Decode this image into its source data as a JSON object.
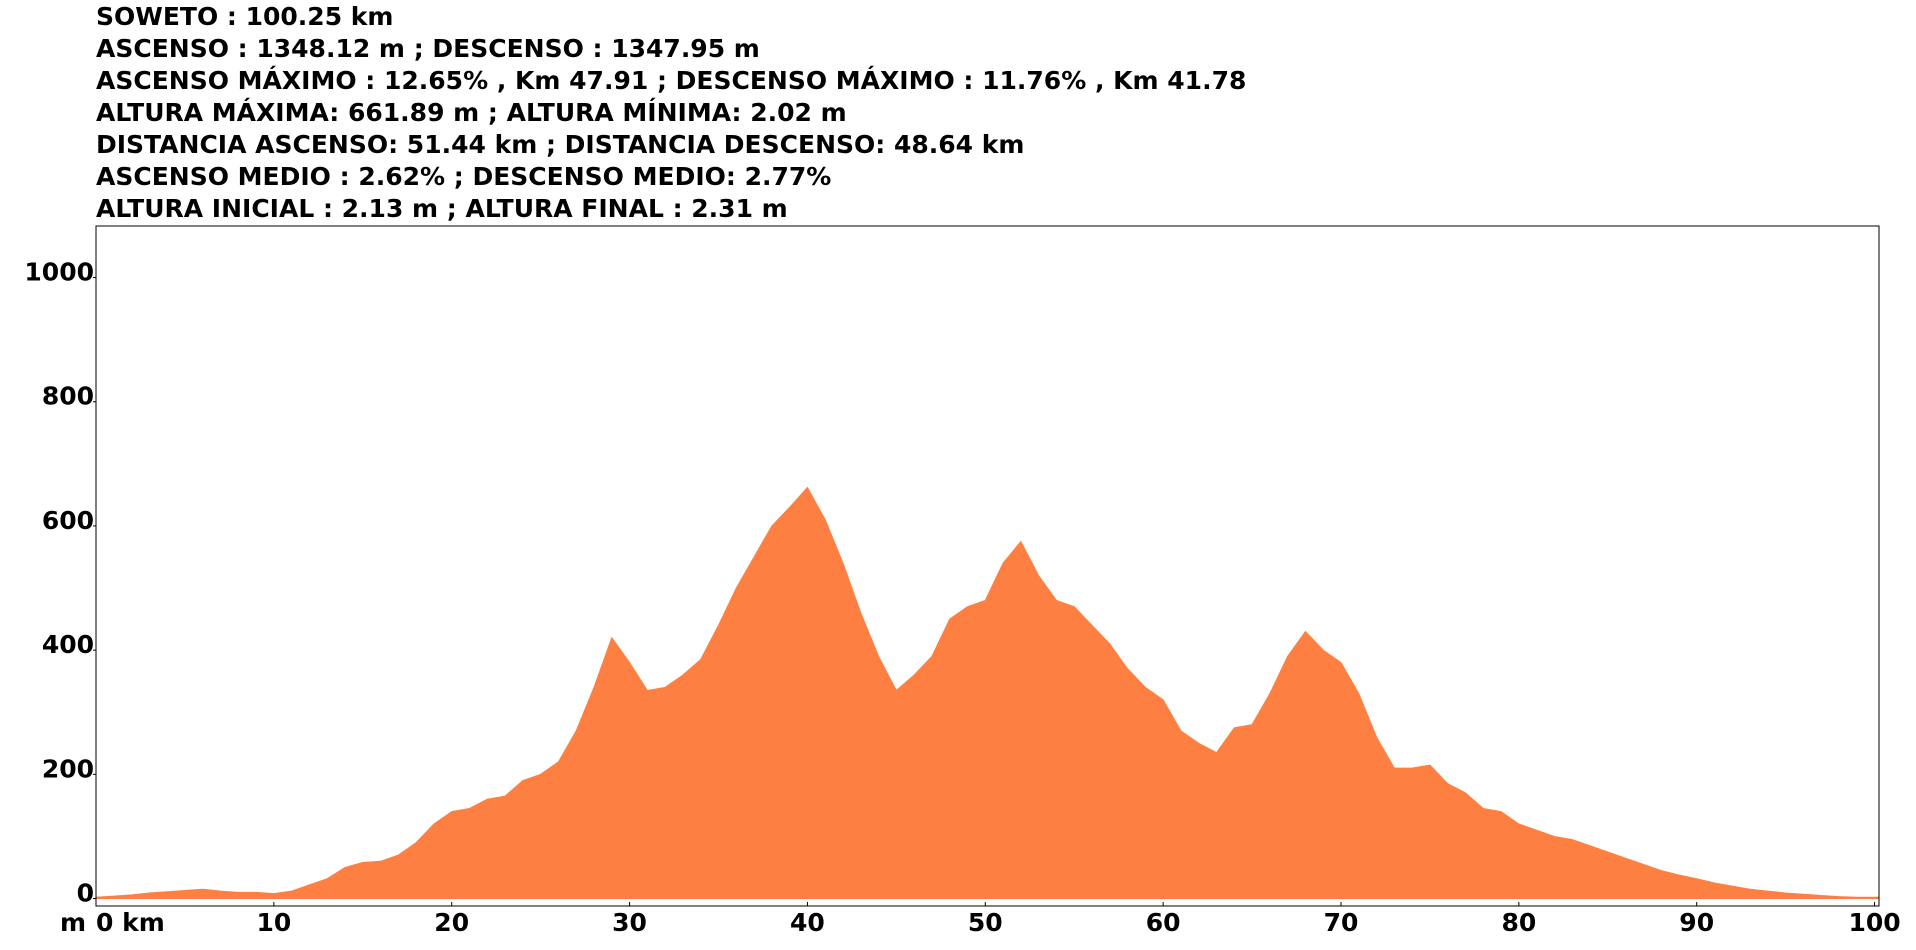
{
  "chart_data": {
    "type": "area",
    "title": "SOWETO : 100.25 km",
    "annotations": [
      "ASCENSO : 1348.12 m ; DESCENSO : 1347.95 m",
      "ASCENSO MÁXIMO : 12.65% , Km 47.91 ; DESCENSO MÁXIMO : 11.76% , Km 41.78",
      "ALTURA MÁXIMA: 661.89 m ; ALTURA MÍNIMA: 2.02 m",
      "DISTANCIA ASCENSO: 51.44 km ; DISTANCIA DESCENSO: 48.64 km",
      "ASCENSO MEDIO : 2.62% ; DESCENSO MEDIO: 2.77%",
      "ALTURA INICIAL : 2.13 m ; ALTURA FINAL : 2.31 m"
    ],
    "y_label": "m",
    "color": "#fd8042",
    "x": [
      0,
      1,
      2,
      3,
      4,
      5,
      6,
      7,
      8,
      9,
      10,
      11,
      12,
      13,
      14,
      15,
      16,
      17,
      18,
      19,
      20,
      21,
      22,
      23,
      24,
      25,
      26,
      27,
      28,
      29,
      30,
      31,
      32,
      33,
      34,
      35,
      36,
      37,
      38,
      39,
      40,
      41,
      42,
      43,
      44,
      45,
      46,
      47,
      48,
      49,
      50,
      51,
      52,
      53,
      54,
      55,
      56,
      57,
      58,
      59,
      60,
      61,
      62,
      63,
      64,
      65,
      66,
      67,
      68,
      69,
      70,
      71,
      72,
      73,
      74,
      75,
      76,
      77,
      78,
      79,
      80,
      81,
      82,
      83,
      84,
      85,
      86,
      87,
      88,
      89,
      90,
      91,
      92,
      93,
      94,
      95,
      96,
      97,
      98,
      99,
      100,
      100.25
    ],
    "values": [
      2.13,
      4,
      6,
      9,
      11,
      13,
      15,
      12,
      10,
      10,
      8,
      12,
      22,
      32,
      50,
      58,
      60,
      70,
      90,
      120,
      140,
      145,
      160,
      165,
      190,
      200,
      220,
      270,
      340,
      420,
      380,
      335,
      340,
      360,
      385,
      440,
      500,
      550,
      600,
      630,
      661.89,
      610,
      540,
      460,
      390,
      335,
      360,
      390,
      450,
      470,
      480,
      540,
      575,
      520,
      480,
      470,
      440,
      410,
      370,
      340,
      320,
      270,
      250,
      235,
      275,
      280,
      330,
      390,
      430,
      400,
      380,
      330,
      260,
      210,
      210,
      215,
      185,
      170,
      145,
      140,
      120,
      110,
      100,
      95,
      85,
      75,
      65,
      55,
      45,
      38,
      32,
      25,
      20,
      15,
      12,
      9,
      7,
      5,
      3,
      2.02,
      2,
      2.31
    ],
    "xlim": [
      0,
      100.25
    ],
    "xticks": [
      {
        "value": 0,
        "label": "0 km"
      },
      10,
      20,
      30,
      40,
      50,
      60,
      70,
      80,
      90,
      100
    ],
    "ylim": [
      -12,
      1083
    ],
    "yticks": [
      0,
      200,
      400,
      600,
      800,
      1000
    ]
  }
}
